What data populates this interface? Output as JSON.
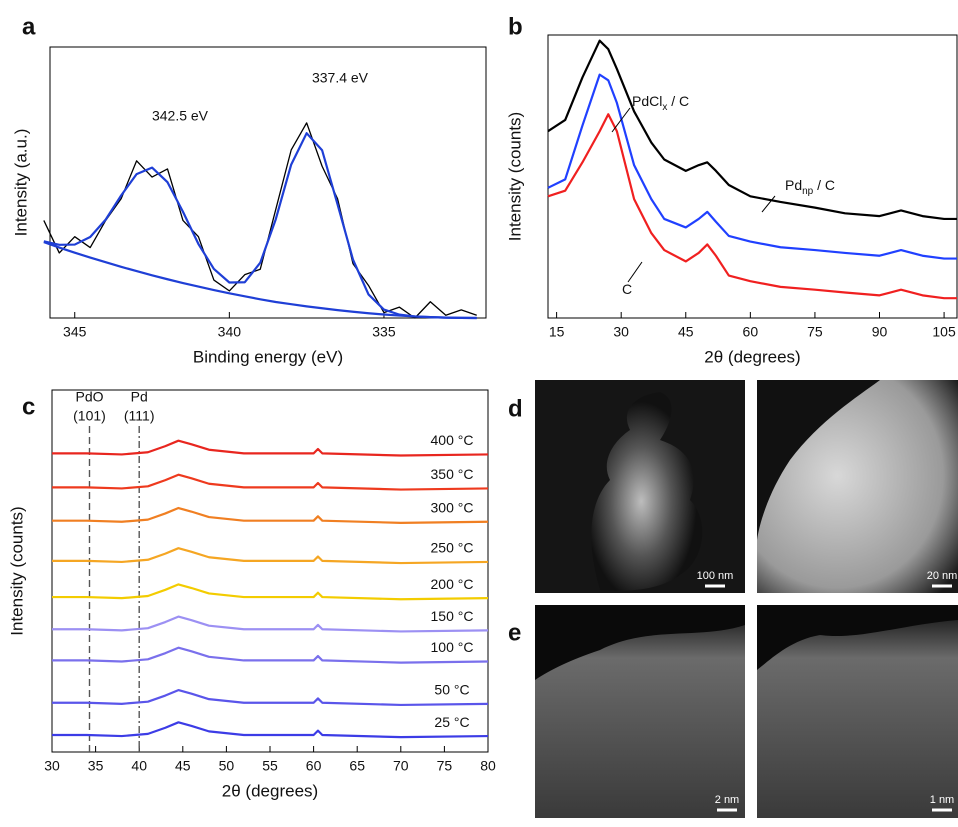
{
  "figure": {
    "panel_labels": [
      "a",
      "b",
      "c",
      "d",
      "e"
    ]
  },
  "chart_data": [
    {
      "type": "line",
      "xlabel": "Binding energy (eV)",
      "ylabel": "Intensity (a.u.)",
      "x": [
        346,
        345.5,
        345,
        344.5,
        344,
        343.5,
        343,
        342.5,
        342,
        341.5,
        341,
        340.5,
        340,
        339.5,
        339,
        338.5,
        338,
        337.5,
        337,
        336.5,
        336,
        335.5,
        335,
        334.5,
        334,
        333.5,
        333,
        332.5,
        332
      ],
      "xlim": [
        345.8,
        331.7
      ],
      "xticks": [
        345,
        340,
        335
      ],
      "ylim": [
        0,
        100
      ],
      "series": [
        {
          "color": "#000000",
          "values": [
            36,
            24,
            30,
            26,
            36,
            44,
            58,
            52,
            55,
            36,
            30,
            14,
            10,
            16,
            18,
            40,
            62,
            72,
            56,
            44,
            20,
            12,
            2,
            4,
            0,
            6,
            1,
            3,
            1
          ]
        },
        {
          "color": "#1f3fd6",
          "values": [
            28.3,
            27.0,
            27.1,
            29.9,
            36.3,
            45.2,
            53.1,
            55.5,
            50.1,
            39.2,
            27.3,
            18.1,
            13.1,
            13.2,
            20.4,
            36.4,
            56.6,
            68.2,
            61.9,
            41.9,
            21.5,
            8.7,
            3.1,
            1.25,
            0.57,
            0.32,
            0.14,
            0.04,
            0
          ]
        },
        {
          "color": "#1f3fd6",
          "values": [
            28,
            26.0,
            24.1,
            22.3,
            20.6,
            18.9,
            17.3,
            15.75,
            14.3,
            12.9,
            11.6,
            10.3,
            9.1,
            8.0,
            6.9,
            5.9,
            5.1,
            4.3,
            3.6,
            2.9,
            2.3,
            1.75,
            1.29,
            0.89,
            0.57,
            0.32,
            0.14,
            0.04,
            0
          ]
        }
      ],
      "annotations": [
        "342.5 eV",
        "337.4 eV"
      ]
    },
    {
      "type": "line",
      "xlabel": "2θ (degrees)",
      "ylabel": "Intensity (counts)",
      "x": [
        13,
        17,
        21,
        25,
        27,
        29,
        33,
        37,
        40,
        45,
        48,
        50,
        52,
        55,
        60,
        67,
        75,
        82,
        90,
        95,
        100,
        105,
        108
      ],
      "xlim": [
        13,
        108
      ],
      "xticks": [
        15,
        30,
        45,
        60,
        75,
        90,
        105
      ],
      "ylim": [
        0,
        100
      ],
      "series": [
        {
          "color": "#000000",
          "label": {
            "text": "Pd",
            "sub": "np",
            "after": " / C"
          },
          "values": [
            66,
            70,
            85,
            98,
            95,
            88,
            73,
            62,
            56,
            52,
            54,
            55,
            52,
            47,
            43,
            41,
            39,
            37,
            36,
            38,
            36,
            35,
            35
          ]
        },
        {
          "color": "#2040ff",
          "label": {
            "text": "PdCl",
            "sub": "x",
            "after": " / C"
          },
          "values": [
            46,
            49,
            68,
            86,
            84,
            76,
            54,
            42,
            35,
            32,
            35,
            37.5,
            34,
            29,
            27,
            25,
            24,
            23,
            22,
            24,
            22,
            21,
            21
          ]
        },
        {
          "color": "#f02020",
          "label": {
            "text": "C"
          },
          "values": [
            43,
            45,
            55,
            66,
            72,
            66,
            42,
            30,
            24,
            20,
            23,
            26,
            22,
            15,
            13,
            11,
            10,
            9,
            8,
            10,
            8,
            7,
            7
          ]
        }
      ]
    },
    {
      "type": "line",
      "xlabel": "2θ (degrees)",
      "ylabel": "Intensity (counts)",
      "x": [
        30,
        34,
        38,
        41,
        43,
        44.5,
        46,
        48,
        52,
        60,
        60.5,
        61,
        70,
        80
      ],
      "xlim": [
        30,
        80
      ],
      "xticks": [
        30,
        35,
        40,
        45,
        50,
        55,
        60,
        65,
        70,
        75,
        80
      ],
      "ylim": [
        0,
        100
      ],
      "series": [
        {
          "name": "400 °C",
          "color": "#e8261f",
          "values": [
            82.5,
            82.5,
            82.2,
            82.8,
            84.5,
            86.0,
            85.0,
            83.5,
            82.5,
            82.5,
            83.7,
            82.5,
            81.9,
            82.2
          ]
        },
        {
          "name": "350 °C",
          "color": "#ee3a1e",
          "values": [
            73.1,
            73.1,
            72.8,
            73.4,
            75.1,
            76.6,
            75.6,
            74.1,
            73.1,
            73.1,
            74.3,
            73.1,
            72.5,
            72.8
          ]
        },
        {
          "name": "300 °C",
          "color": "#f07f22",
          "values": [
            63.9,
            63.9,
            63.6,
            64.2,
            65.9,
            67.4,
            66.4,
            64.9,
            63.9,
            63.9,
            65.1,
            63.9,
            63.3,
            63.6
          ]
        },
        {
          "name": "250 °C",
          "color": "#f5a623",
          "values": [
            52.8,
            52.8,
            52.5,
            53.1,
            54.8,
            56.3,
            55.3,
            53.8,
            52.8,
            52.8,
            54.0,
            52.8,
            52.2,
            52.5
          ]
        },
        {
          "name": "200 °C",
          "color": "#f3cc00",
          "values": [
            42.8,
            42.8,
            42.5,
            43.1,
            44.8,
            46.3,
            45.3,
            43.8,
            42.8,
            42.8,
            44.0,
            42.8,
            42.2,
            42.5
          ]
        },
        {
          "name": "150 °C",
          "color": "#9c90f3",
          "values": [
            33.9,
            33.9,
            33.6,
            34.2,
            35.9,
            37.4,
            36.4,
            34.9,
            33.9,
            33.9,
            35.1,
            33.9,
            33.3,
            33.6
          ]
        },
        {
          "name": "100 °C",
          "color": "#7a70ec",
          "values": [
            25.3,
            25.3,
            25.0,
            25.6,
            27.3,
            28.8,
            27.8,
            26.3,
            25.3,
            25.3,
            26.5,
            25.3,
            24.7,
            25.0
          ]
        },
        {
          "name": "50 °C",
          "color": "#5a55ea",
          "values": [
            13.6,
            13.6,
            13.3,
            13.9,
            15.6,
            17.1,
            16.1,
            14.6,
            13.6,
            13.6,
            14.8,
            13.6,
            13.0,
            13.3
          ]
        },
        {
          "name": "25 °C",
          "color": "#3c3ce6",
          "values": [
            4.7,
            4.7,
            4.4,
            5.0,
            6.7,
            8.2,
            7.2,
            5.7,
            4.7,
            4.7,
            5.9,
            4.7,
            4.1,
            4.4
          ]
        }
      ],
      "reference_lines": [
        {
          "x": 34.3,
          "style": "dashed",
          "label": [
            "PdO",
            "(101)"
          ]
        },
        {
          "x": 40,
          "style": "dashdot",
          "label": [
            "Pd",
            "(111)"
          ]
        }
      ]
    }
  ],
  "images": [
    {
      "panel": "d",
      "scale_bar": "100 nm"
    },
    {
      "panel": "d",
      "scale_bar": "20 nm"
    },
    {
      "panel": "e",
      "scale_bar": "2 nm"
    },
    {
      "panel": "e",
      "scale_bar": "1 nm"
    }
  ]
}
